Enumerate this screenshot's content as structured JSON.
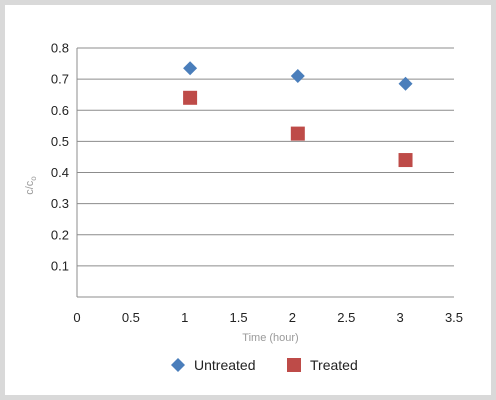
{
  "chart_data": {
    "type": "scatter",
    "xlabel": "Time (hour)",
    "ylabel": "c/c",
    "ylabel_subscript": "o",
    "xlim": [
      0,
      3.5
    ],
    "ylim": [
      0,
      0.8
    ],
    "x_ticks": [
      "0",
      "0.5",
      "1",
      "1.5",
      "2",
      "2.5",
      "3",
      "3.5"
    ],
    "x_tick_values": [
      0,
      0.5,
      1,
      1.5,
      2,
      2.5,
      3,
      3.5
    ],
    "y_ticks": [
      "0.1",
      "0.2",
      "0.3",
      "0.4",
      "0.5",
      "0.6",
      "0.7",
      "0.8"
    ],
    "y_tick_values": [
      0.1,
      0.2,
      0.3,
      0.4,
      0.5,
      0.6,
      0.7,
      0.8
    ],
    "grid": "horizontal",
    "legend_position": "bottom",
    "series": [
      {
        "name": "Untreated",
        "marker": "diamond",
        "color": "#4a7ebb",
        "points": [
          {
            "x": 1.05,
            "y": 0.735
          },
          {
            "x": 2.05,
            "y": 0.71
          },
          {
            "x": 3.05,
            "y": 0.685
          }
        ]
      },
      {
        "name": "Treated",
        "marker": "square",
        "color": "#be4b48",
        "points": [
          {
            "x": 1.05,
            "y": 0.64
          },
          {
            "x": 2.05,
            "y": 0.525
          },
          {
            "x": 3.05,
            "y": 0.44
          }
        ]
      }
    ]
  }
}
